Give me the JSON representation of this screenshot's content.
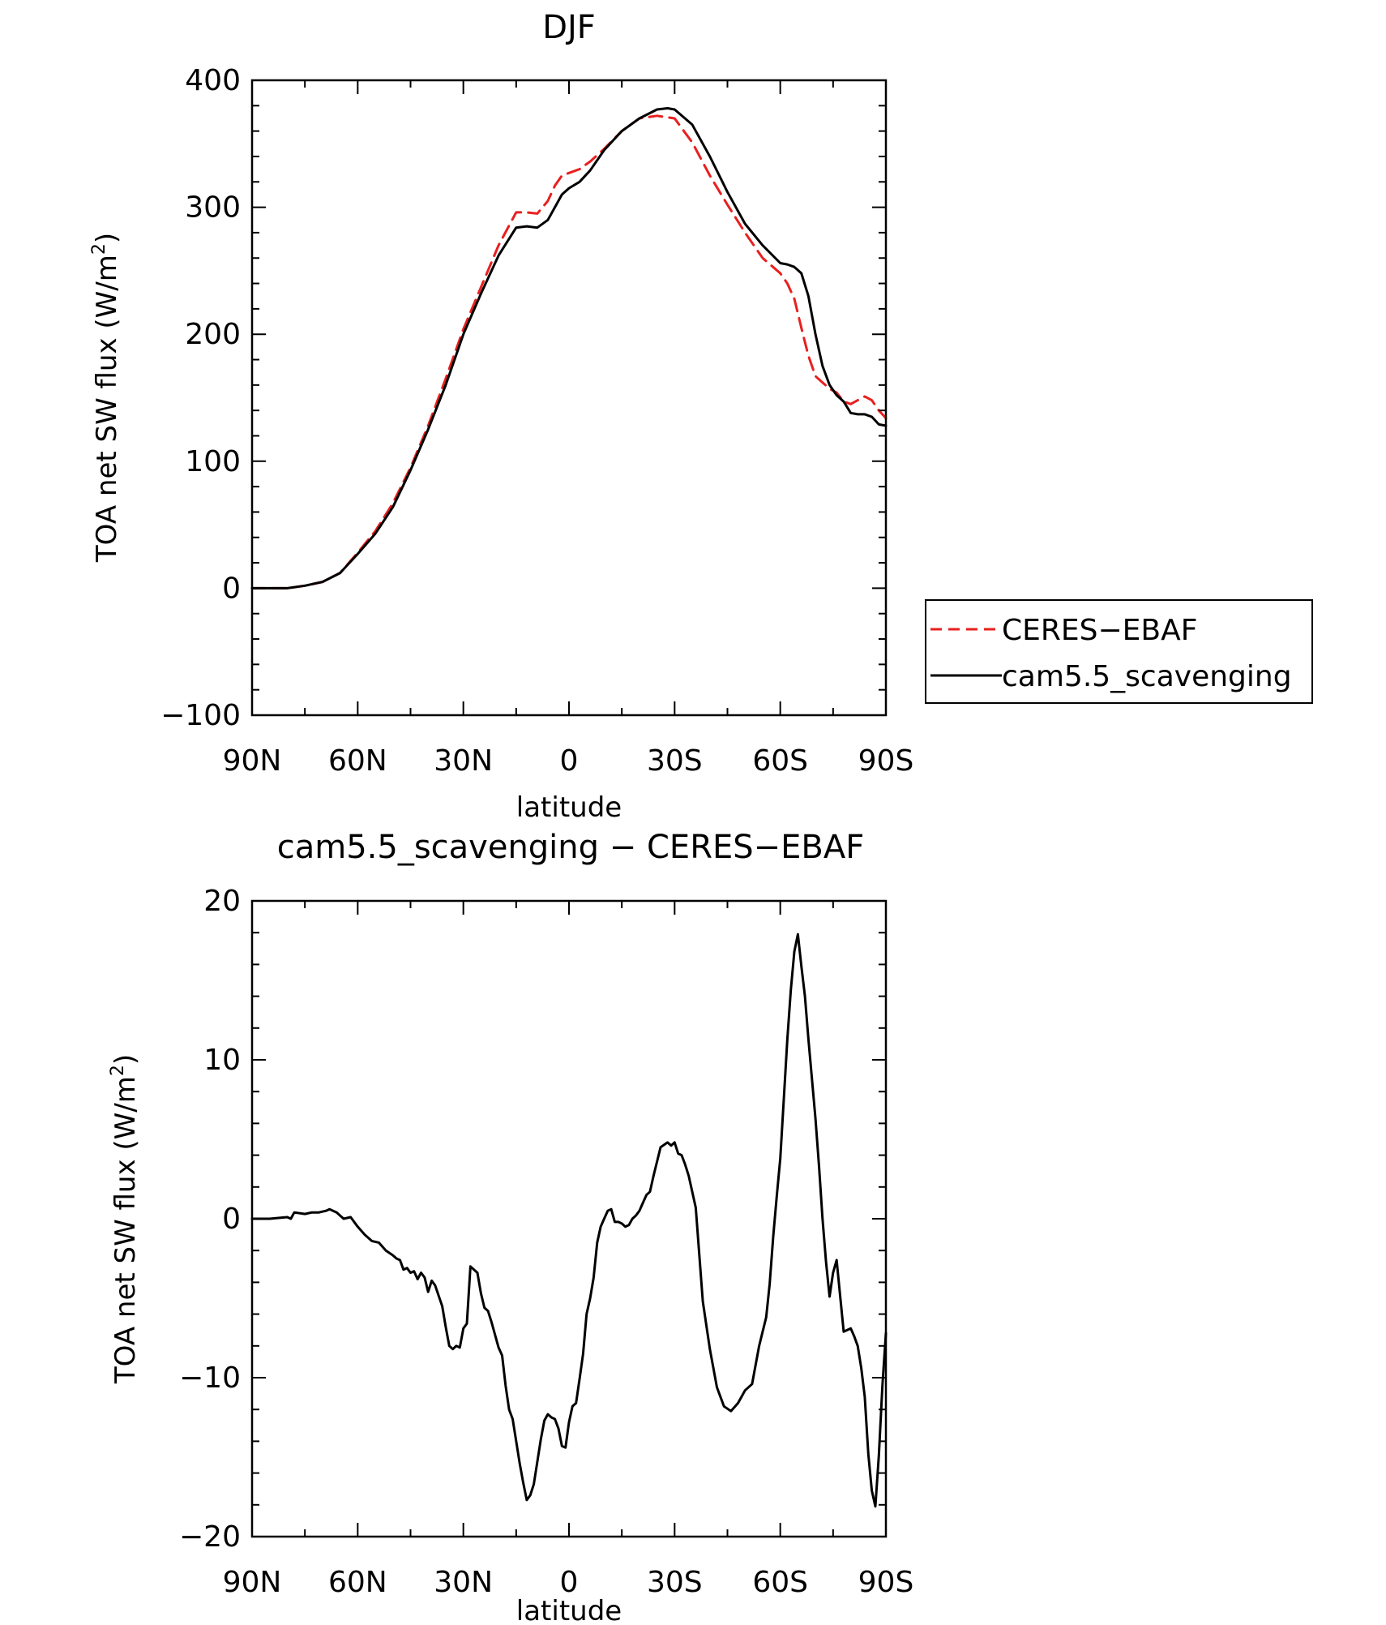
{
  "chart_data": [
    {
      "type": "line",
      "title": "DJF",
      "xlabel": "latitude",
      "ylabel": "TOA net SW flux (W/m",
      "ylabel_sup": "2",
      "ylabel_close": ")",
      "xlim": [
        -90,
        90
      ],
      "ylim": [
        -100,
        400
      ],
      "x_tick_values": [
        -90,
        -60,
        -30,
        0,
        30,
        60,
        90
      ],
      "x_tick_labels": [
        "90N",
        "60N",
        "30N",
        "0",
        "30S",
        "60S",
        "90S"
      ],
      "y_tick_values": [
        -100,
        0,
        100,
        200,
        300,
        400
      ],
      "y_tick_labels": [
        "−100",
        "0",
        "100",
        "200",
        "300",
        "400"
      ],
      "grid": false,
      "legend_position": "outside-right",
      "series": [
        {
          "name": "CERES−EBAF",
          "color": "#e8201f",
          "dash": "dashed",
          "x": [
            -90,
            -80,
            -75,
            -70,
            -65,
            -60,
            -55,
            -50,
            -45,
            -40,
            -35,
            -30,
            -25,
            -20,
            -15,
            -12,
            -9,
            -6,
            -4,
            -2,
            0,
            3,
            6,
            10,
            15,
            20,
            25,
            30,
            35,
            40,
            45,
            50,
            55,
            60,
            62,
            64,
            66,
            68,
            70,
            72,
            74,
            76,
            78,
            80,
            82,
            84,
            86,
            88,
            90
          ],
          "y": [
            0,
            0,
            2,
            5,
            12,
            28,
            45,
            67,
            95,
            128,
            165,
            204,
            237,
            270,
            296,
            296,
            295,
            305,
            317,
            325,
            327,
            330,
            336,
            346,
            360,
            370,
            372,
            370,
            351,
            325,
            302,
            280,
            260,
            248,
            240,
            228,
            205,
            183,
            167,
            162,
            157,
            154,
            147,
            145,
            148,
            151,
            148,
            140,
            134
          ]
        },
        {
          "name": "cam5.5_scavenging",
          "color": "#000000",
          "dash": "solid",
          "x": [
            -90,
            -80,
            -75,
            -70,
            -65,
            -60,
            -55,
            -50,
            -45,
            -40,
            -35,
            -30,
            -25,
            -20,
            -15,
            -12,
            -9,
            -6,
            -4,
            -2,
            0,
            3,
            6,
            10,
            15,
            20,
            25,
            28,
            30,
            35,
            40,
            45,
            50,
            55,
            60,
            62,
            64,
            66,
            68,
            70,
            72,
            74,
            76,
            78,
            80,
            82,
            84,
            86,
            88,
            90
          ],
          "y": [
            0,
            0,
            2,
            5,
            12,
            27,
            43,
            64,
            93,
            125,
            160,
            200,
            232,
            262,
            284,
            285,
            284,
            290,
            300,
            310,
            315,
            320,
            329,
            345,
            360,
            370,
            377,
            378,
            377,
            365,
            340,
            312,
            287,
            270,
            256,
            255,
            253,
            248,
            230,
            200,
            175,
            160,
            152,
            147,
            138,
            137,
            137,
            135,
            129,
            128
          ]
        }
      ]
    },
    {
      "type": "line",
      "title": "cam5.5_scavenging − CERES−EBAF",
      "xlabel": "latitude",
      "ylabel": "TOA net SW flux (W/m",
      "ylabel_sup": "2",
      "ylabel_close": ")",
      "xlim": [
        -90,
        90
      ],
      "ylim": [
        -20,
        20
      ],
      "x_tick_values": [
        -90,
        -60,
        -30,
        0,
        30,
        60,
        90
      ],
      "x_tick_labels": [
        "90N",
        "60N",
        "30N",
        "0",
        "30S",
        "60S",
        "90S"
      ],
      "y_tick_values": [
        -20,
        -10,
        0,
        10,
        20
      ],
      "y_tick_labels": [
        "−20",
        "−10",
        "0",
        "10",
        "20"
      ],
      "grid": false,
      "series": [
        {
          "color": "#000000",
          "dash": "solid",
          "x": [
            -90,
            -85,
            -80,
            -79,
            -78,
            -75,
            -73,
            -71,
            -69,
            -68,
            -66,
            -65,
            -64,
            -62,
            -60,
            -58,
            -56,
            -54,
            -52,
            -50,
            -49,
            -48,
            -47,
            -46,
            -45,
            -44,
            -43,
            -42,
            -41,
            -40,
            -39,
            -38,
            -36,
            -35,
            -34,
            -33,
            -32,
            -31,
            -30,
            -29,
            -28,
            -26,
            -25,
            -24,
            -23,
            -22,
            -20,
            -19,
            -18,
            -17,
            -16,
            -14,
            -13,
            -12,
            -11,
            -10,
            -8,
            -7,
            -6,
            -5,
            -4,
            -3,
            -2,
            -1,
            0,
            1,
            2,
            3,
            4,
            5,
            6,
            7,
            8,
            9,
            10,
            11,
            12,
            13,
            14,
            15,
            16,
            17,
            18,
            19,
            20,
            21,
            22,
            23,
            24,
            26,
            28,
            29,
            30,
            31,
            32,
            33,
            34,
            36,
            38,
            40,
            42,
            44,
            46,
            48,
            49,
            50,
            52,
            54,
            56,
            57,
            58,
            59,
            60,
            61,
            62,
            63,
            64,
            65,
            66,
            67,
            68,
            70,
            71,
            72,
            73,
            74,
            75,
            76,
            78,
            80,
            81,
            82,
            83,
            84,
            85,
            86,
            87,
            88,
            89,
            90
          ],
          "y": [
            0,
            0,
            0.1,
            0,
            0.4,
            0.3,
            0.4,
            0.4,
            0.5,
            0.6,
            0.4,
            0.2,
            0,
            0.1,
            -0.5,
            -1,
            -1.4,
            -1.5,
            -2,
            -2.3,
            -2.5,
            -2.6,
            -3.2,
            -3.1,
            -3.4,
            -3.3,
            -3.8,
            -3.4,
            -3.7,
            -4.6,
            -3.9,
            -4.2,
            -5.5,
            -6.8,
            -8,
            -8.2,
            -8,
            -8.1,
            -6.9,
            -6.6,
            -3.0,
            -3.4,
            -4.7,
            -5.6,
            -5.8,
            -6.5,
            -8.1,
            -8.6,
            -10.5,
            -12,
            -12.6,
            -15.4,
            -16.6,
            -17.7,
            -17.4,
            -16.7,
            -13.9,
            -12.7,
            -12.3,
            -12.5,
            -12.6,
            -13.2,
            -14.3,
            -14.4,
            -12.8,
            -11.8,
            -11.6,
            -10.1,
            -8.5,
            -6,
            -5,
            -3.7,
            -1.5,
            -0.5,
            0,
            0.5,
            0.6,
            -0.2,
            -0.2,
            -0.3,
            -0.5,
            -0.4,
            0,
            0.2,
            0.5,
            1,
            1.5,
            1.7,
            2.7,
            4.5,
            4.8,
            4.6,
            4.8,
            4.1,
            4.0,
            3.4,
            2.7,
            0.7,
            -5.2,
            -8.2,
            -10.6,
            -11.8,
            -12.1,
            -11.6,
            -11.2,
            -10.8,
            -10.4,
            -8,
            -6.2,
            -4.1,
            -1.1,
            1.4,
            3.8,
            7.5,
            11.3,
            14.4,
            16.8,
            17.9,
            15.9,
            14,
            11.3,
            6.3,
            3.3,
            0,
            -2.7,
            -4.9,
            -3.4,
            -2.6,
            -7.1,
            -6.9,
            -7.4,
            -8,
            -9.4,
            -11.2,
            -14.8,
            -17.1,
            -18.1,
            -14.9,
            -10.5,
            -7.2
          ]
        }
      ]
    }
  ],
  "legend": {
    "items": [
      {
        "label": "CERES−EBAF",
        "color": "#e8201f",
        "dash": "dashed"
      },
      {
        "label": "cam5.5_scavenging",
        "color": "#000000",
        "dash": "solid"
      }
    ]
  }
}
